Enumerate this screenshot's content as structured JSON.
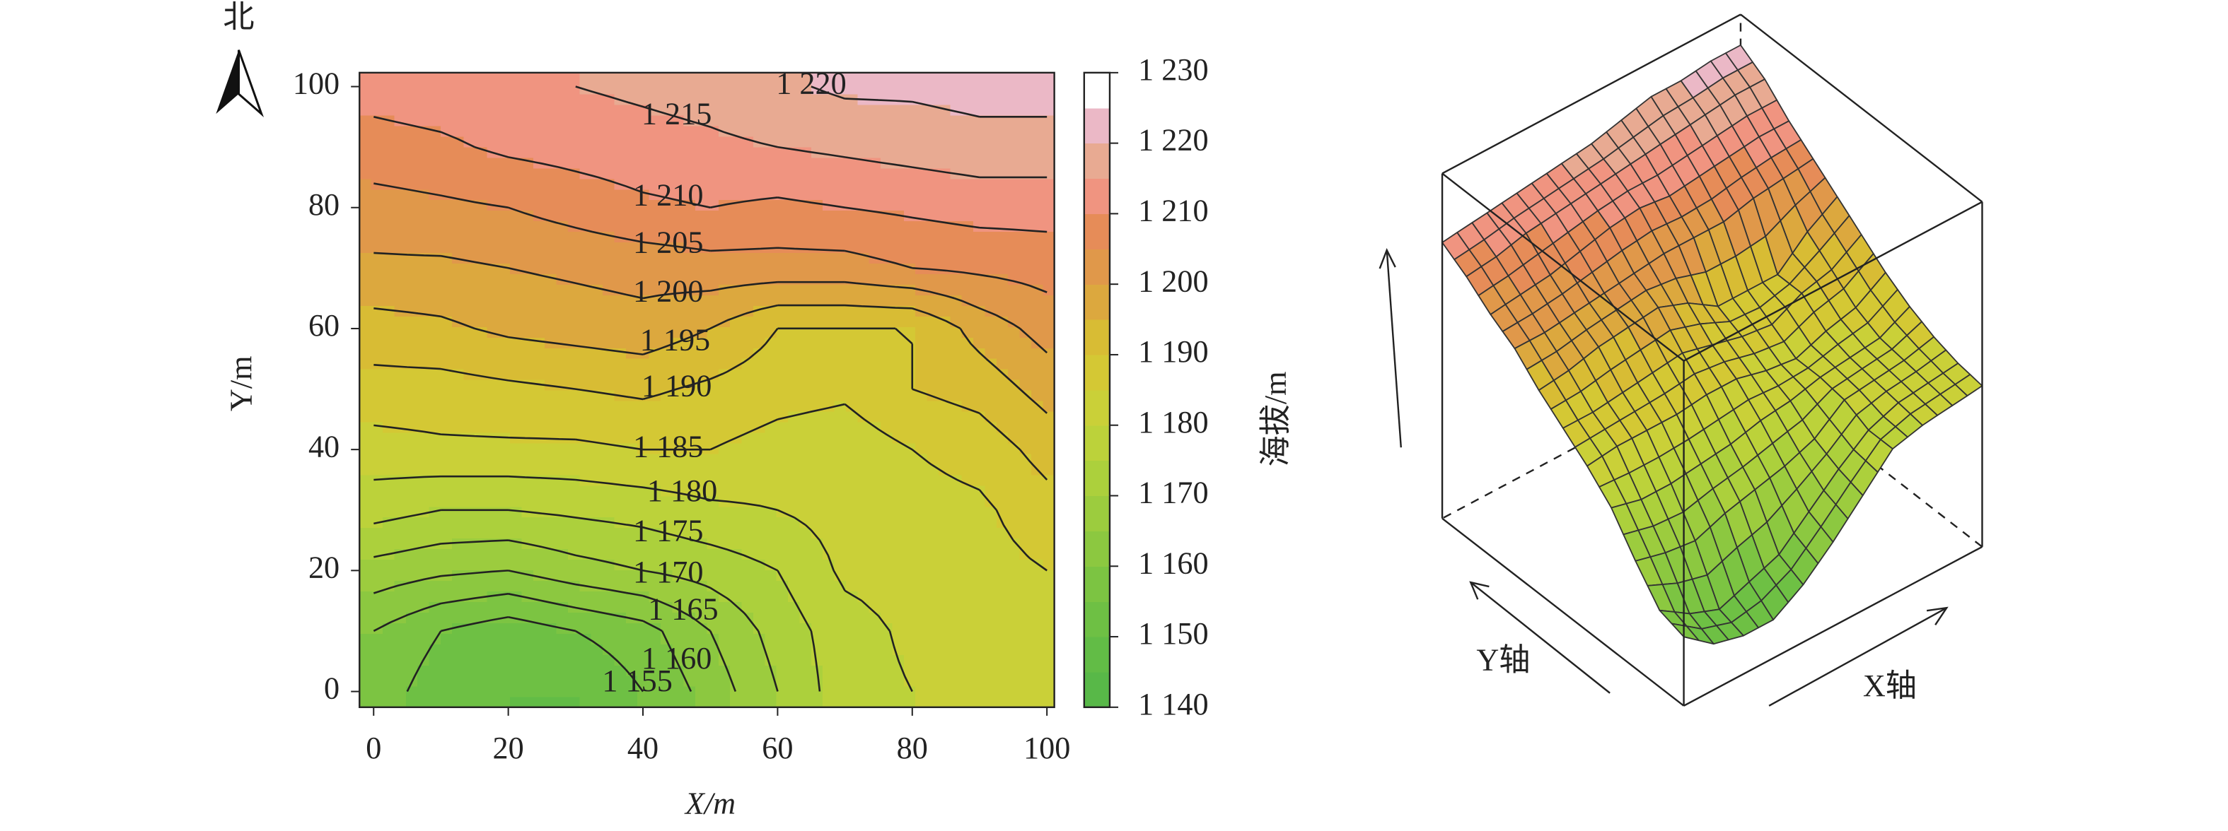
{
  "chart_data": [
    {
      "type": "contour",
      "north_label": "北",
      "x_label": "X/m",
      "y_label": "Y/m",
      "colorbar_label": "海拔/m",
      "xlim": [
        -2.1,
        101.1
      ],
      "ylim": [
        -2.6,
        102.3
      ],
      "xticks": [
        0,
        20,
        40,
        60,
        80,
        100
      ],
      "yticks": [
        0,
        20,
        40,
        60,
        80,
        100
      ],
      "x": [
        0,
        10,
        20,
        30,
        40,
        50,
        60,
        70,
        80,
        90,
        100
      ],
      "y": [
        0,
        10,
        20,
        30,
        40,
        50,
        60,
        70,
        80,
        90,
        100
      ],
      "z": [
        [
          1158,
          1152,
          1150,
          1150,
          1155,
          1162,
          1170,
          1178,
          1180,
          1181,
          1182
        ],
        [
          1160,
          1155,
          1152,
          1155,
          1158,
          1165,
          1172,
          1178,
          1181,
          1182,
          1183
        ],
        [
          1168,
          1166,
          1165,
          1168,
          1170,
          1172,
          1175,
          1181,
          1182,
          1183,
          1185
        ],
        [
          1177,
          1175,
          1175,
          1176,
          1177,
          1179,
          1180,
          1182,
          1183,
          1184,
          1188
        ],
        [
          1183,
          1184,
          1184,
          1184,
          1185,
          1185,
          1183,
          1182,
          1185,
          1187,
          1192
        ],
        [
          1188,
          1188,
          1189,
          1190,
          1191,
          1189,
          1187,
          1186,
          1190,
          1192,
          1197
        ],
        [
          1193,
          1194,
          1196,
          1197,
          1198,
          1195,
          1190,
          1190,
          1190,
          1197,
          1202
        ],
        [
          1199,
          1199,
          1200,
          1201,
          1202,
          1203,
          1203,
          1203,
          1205,
          1206,
          1207
        ],
        [
          1203,
          1204,
          1205,
          1207,
          1209,
          1210,
          1209,
          1210,
          1211,
          1212,
          1212
        ],
        [
          1208,
          1209,
          1211,
          1212,
          1213,
          1214,
          1215,
          1216,
          1217,
          1218,
          1218
        ],
        [
          1212,
          1213,
          1214,
          1215,
          1216,
          1217,
          1219,
          1221,
          1221,
          1222,
          1222
        ]
      ],
      "contour_levels": [
        {
          "value": 1155,
          "label": "1 155"
        },
        {
          "value": 1160,
          "label": "1 160"
        },
        {
          "value": 1165,
          "label": "1 165"
        },
        {
          "value": 1170,
          "label": "1 170"
        },
        {
          "value": 1175,
          "label": "1 175"
        },
        {
          "value": 1180,
          "label": "1 180"
        },
        {
          "value": 1185,
          "label": "1 185"
        },
        {
          "value": 1190,
          "label": "1 190"
        },
        {
          "value": 1195,
          "label": "1 195"
        },
        {
          "value": 1200,
          "label": "1 200"
        },
        {
          "value": 1205,
          "label": "1 205"
        },
        {
          "value": 1210,
          "label": "1 210"
        },
        {
          "value": 1215,
          "label": "1 215"
        },
        {
          "value": 1220,
          "label": "1 220"
        }
      ],
      "bounds": [
        1140,
        1145,
        1150,
        1155,
        1160,
        1165,
        1170,
        1175,
        1180,
        1185,
        1190,
        1195,
        1200,
        1205,
        1210,
        1215,
        1220,
        1225,
        1230
      ],
      "colors": [
        "#58b848",
        "#62bc46",
        "#6ec044",
        "#7cc442",
        "#8cc840",
        "#9ccc3e",
        "#acd03c",
        "#bcd23a",
        "#cad038",
        "#d4c834",
        "#d8bc34",
        "#dca83e",
        "#e0984a",
        "#e68c58",
        "#f09480",
        "#e8aa92",
        "#ebb8c6",
        "#ffffff"
      ],
      "colorbar_ticks": [
        {
          "value": 1140,
          "label": "1 140"
        },
        {
          "value": 1150,
          "label": "1 150"
        },
        {
          "value": 1160,
          "label": "1 160"
        },
        {
          "value": 1170,
          "label": "1 170"
        },
        {
          "value": 1180,
          "label": "1 180"
        },
        {
          "value": 1190,
          "label": "1 190"
        },
        {
          "value": 1200,
          "label": "1 200"
        },
        {
          "value": 1210,
          "label": "1 210"
        },
        {
          "value": 1220,
          "label": "1 220"
        },
        {
          "value": 1230,
          "label": "1 230"
        }
      ]
    },
    {
      "type": "surface",
      "x_label": "X轴",
      "y_label": "Y轴",
      "zlim": [
        1140,
        1230
      ]
    }
  ]
}
